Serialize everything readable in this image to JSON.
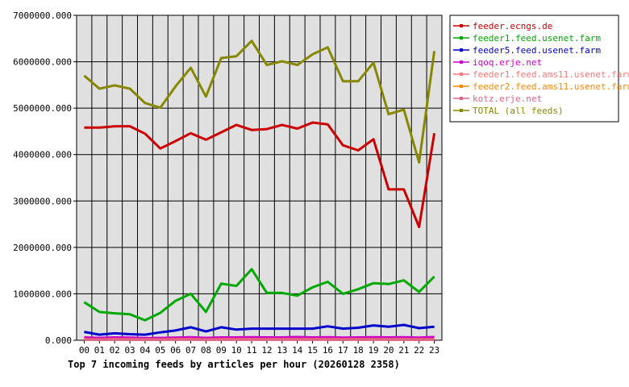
{
  "chart_data": {
    "type": "line",
    "title": "Top 7 incoming feeds by articles per hour (20260128 2358)",
    "xlabel": "",
    "ylabel": "",
    "ylim": [
      0,
      7000000
    ],
    "grid": true,
    "legend_position": "right",
    "categories": [
      "00",
      "01",
      "02",
      "03",
      "04",
      "05",
      "06",
      "07",
      "08",
      "09",
      "10",
      "11",
      "12",
      "13",
      "14",
      "15",
      "16",
      "17",
      "18",
      "19",
      "20",
      "21",
      "22",
      "23"
    ],
    "y_ticks": [
      "0.000",
      "1000000.000",
      "2000000.000",
      "3000000.000",
      "4000000.000",
      "5000000.000",
      "6000000.000",
      "7000000.000"
    ],
    "series": [
      {
        "name": "feeder.ecngs.de",
        "color": "#cc0000",
        "values": [
          4580000,
          4580000,
          4610000,
          4610000,
          4450000,
          4130000,
          4290000,
          4460000,
          4320000,
          4480000,
          4640000,
          4530000,
          4550000,
          4640000,
          4560000,
          4690000,
          4650000,
          4200000,
          4090000,
          4330000,
          3250000,
          3250000,
          2440000,
          4460000
        ]
      },
      {
        "name": "feeder1.feed.usenet.farm",
        "color": "#00aa00",
        "values": [
          820000,
          610000,
          580000,
          560000,
          430000,
          590000,
          850000,
          1000000,
          610000,
          1220000,
          1170000,
          1530000,
          1020000,
          1020000,
          960000,
          1140000,
          1260000,
          1000000,
          1100000,
          1230000,
          1210000,
          1290000,
          1040000,
          1370000
        ]
      },
      {
        "name": "feeder5.feed.usenet.farm",
        "color": "#0000cc",
        "values": [
          180000,
          120000,
          150000,
          130000,
          120000,
          170000,
          210000,
          280000,
          190000,
          280000,
          230000,
          250000,
          250000,
          250000,
          250000,
          250000,
          300000,
          250000,
          270000,
          320000,
          290000,
          330000,
          260000,
          290000
        ]
      },
      {
        "name": "iqoq.erje.net",
        "color": "#cc00cc",
        "values": [
          60000,
          50000,
          60000,
          55000,
          45000,
          50000,
          55000,
          65000,
          50000,
          60000,
          60000,
          65000,
          60000,
          60000,
          70000,
          60000,
          65000,
          55000,
          60000,
          65000,
          60000,
          65000,
          55000,
          70000
        ]
      },
      {
        "name": "feeder1.feed.ams11.usenet.farm",
        "color": "#ff7777",
        "values": [
          20000,
          18000,
          20000,
          19000,
          17000,
          18000,
          20000,
          22000,
          18000,
          21000,
          20000,
          22000,
          20000,
          20000,
          22000,
          20000,
          21000,
          19000,
          20000,
          21000,
          20000,
          21000,
          19000,
          22000
        ]
      },
      {
        "name": "feeder2.feed.ams11.usenet.farm",
        "color": "#ff8800",
        "values": [
          15000,
          14000,
          15000,
          14000,
          13000,
          14000,
          15000,
          16000,
          14000,
          16000,
          15000,
          16000,
          15000,
          15000,
          16000,
          15000,
          16000,
          14000,
          15000,
          16000,
          15000,
          16000,
          14000,
          16000
        ]
      },
      {
        "name": "kotz.erje.net",
        "color": "#dd6688",
        "values": [
          10000,
          9000,
          10000,
          9000,
          9000,
          9000,
          10000,
          11000,
          9000,
          10000,
          10000,
          11000,
          10000,
          10000,
          11000,
          10000,
          10000,
          9000,
          10000,
          10000,
          10000,
          11000,
          9000,
          11000
        ]
      },
      {
        "name": "TOTAL (all feeds)",
        "color": "#888800",
        "values": [
          5700000,
          5420000,
          5490000,
          5420000,
          5110000,
          5010000,
          5470000,
          5870000,
          5250000,
          6080000,
          6120000,
          6450000,
          5930000,
          6010000,
          5930000,
          6160000,
          6310000,
          5580000,
          5580000,
          5980000,
          4870000,
          4970000,
          3830000,
          6230000
        ]
      }
    ]
  }
}
